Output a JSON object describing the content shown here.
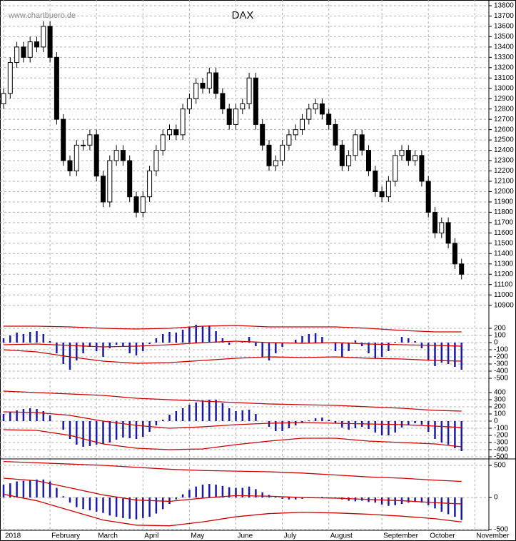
{
  "chart_data": [
    {
      "type": "candlestick",
      "title": "DAX",
      "watermark": "www.chartbuero.de",
      "categories": [
        "2018",
        null,
        null,
        null,
        null,
        null,
        null,
        "February",
        null,
        null,
        null,
        null,
        null,
        null,
        "March",
        null,
        null,
        null,
        null,
        null,
        null,
        "April",
        null,
        null,
        null,
        null,
        null,
        null,
        "May",
        null,
        null,
        null,
        null,
        null,
        null,
        "June",
        null,
        null,
        null,
        null,
        null,
        null,
        "July",
        null,
        null,
        null,
        null,
        null,
        null,
        "August",
        null,
        null,
        null,
        null,
        null,
        null,
        null,
        "September",
        null,
        null,
        null,
        null,
        null,
        null,
        "October",
        null,
        null,
        null,
        null,
        null,
        null,
        "November"
      ],
      "open": [
        12850,
        12950,
        13250,
        13400,
        13300,
        13450,
        13400,
        13600,
        13300,
        12700,
        12300,
        12200,
        12450,
        12450,
        12550,
        12150,
        11900,
        12300,
        12400,
        12300,
        11950,
        11800,
        11950,
        12200,
        12400,
        12550,
        12600,
        12550,
        12800,
        12900,
        13050,
        13000,
        13150,
        12950,
        12800,
        12650,
        12800,
        12850,
        13100,
        12650,
        12450,
        12250,
        12300,
        12450,
        12550,
        12600,
        12700,
        12800,
        12850,
        12750,
        12650,
        12450,
        12250,
        12350,
        12550,
        12400,
        12200,
        12000,
        11950,
        12100,
        12350,
        12400,
        12300,
        12350,
        12100,
        11800,
        11600,
        11700,
        11500,
        11300,
        null,
        null
      ],
      "high": [
        13000,
        13300,
        13450,
        13450,
        13500,
        13500,
        13650,
        13650,
        13350,
        12750,
        12350,
        12500,
        12500,
        12600,
        12600,
        12200,
        12350,
        12450,
        12450,
        12350,
        12000,
        12000,
        12250,
        12450,
        12600,
        12650,
        12650,
        12850,
        12950,
        13100,
        13100,
        13200,
        13200,
        13000,
        12850,
        12850,
        12900,
        13150,
        13150,
        12700,
        12500,
        12350,
        12500,
        12600,
        12650,
        12750,
        12850,
        12900,
        12900,
        12800,
        12700,
        12500,
        12400,
        12600,
        12600,
        12450,
        12250,
        12050,
        12150,
        12400,
        12450,
        12450,
        12400,
        12400,
        12150,
        11850,
        11750,
        11750,
        11550,
        11350,
        null,
        null
      ],
      "low": [
        12800,
        12900,
        13200,
        13250,
        13250,
        13350,
        13350,
        13250,
        12650,
        12250,
        12150,
        12150,
        12400,
        12400,
        12100,
        11850,
        11850,
        12250,
        12250,
        11900,
        11750,
        11750,
        11900,
        12150,
        12350,
        12500,
        12500,
        12500,
        12750,
        12850,
        12950,
        12950,
        12900,
        12750,
        12600,
        12600,
        12750,
        12800,
        12600,
        12400,
        12200,
        12200,
        12250,
        12400,
        12500,
        12550,
        12650,
        12750,
        12700,
        12600,
        12400,
        12200,
        12200,
        12300,
        12350,
        12150,
        11950,
        11900,
        11900,
        12050,
        12300,
        12250,
        12250,
        12050,
        11750,
        11550,
        11550,
        11450,
        11250,
        11150,
        null,
        null
      ],
      "close": [
        12950,
        13250,
        13400,
        13300,
        13450,
        13400,
        13600,
        13300,
        12700,
        12300,
        12200,
        12450,
        12450,
        12550,
        12150,
        11900,
        12300,
        12400,
        12300,
        11950,
        11800,
        11950,
        12200,
        12400,
        12550,
        12600,
        12550,
        12800,
        12900,
        13050,
        13000,
        13150,
        12950,
        12800,
        12650,
        12800,
        12850,
        13100,
        12650,
        12450,
        12250,
        12300,
        12450,
        12550,
        12600,
        12700,
        12800,
        12850,
        12750,
        12650,
        12450,
        12250,
        12350,
        12550,
        12400,
        12200,
        12000,
        11950,
        12100,
        12350,
        12400,
        12300,
        12350,
        12100,
        11800,
        11600,
        11700,
        11500,
        11300,
        11200,
        null,
        null
      ],
      "up_color": "#ffffff",
      "down_color": "#000000",
      "ylim": [
        10725,
        13855
      ],
      "yticks": [
        13800,
        13700,
        13600,
        13500,
        13400,
        13300,
        13200,
        13100,
        13000,
        12900,
        12800,
        12700,
        12600,
        12500,
        12400,
        12300,
        12200,
        12100,
        12000,
        11900,
        11800,
        11700,
        11600,
        11500,
        11400,
        11300,
        11200,
        11100,
        11000,
        10900
      ],
      "grid": true
    },
    {
      "type": "bar",
      "color": "#1a1aa8",
      "values": [
        60,
        100,
        140,
        120,
        150,
        160,
        120,
        20,
        -150,
        -300,
        -380,
        -250,
        -150,
        -60,
        -120,
        -200,
        -80,
        -30,
        -60,
        -150,
        -180,
        -120,
        -20,
        60,
        120,
        150,
        140,
        180,
        220,
        250,
        230,
        240,
        160,
        60,
        -30,
        0,
        20,
        80,
        -50,
        -200,
        -250,
        -150,
        -60,
        0,
        40,
        90,
        120,
        130,
        80,
        0,
        -120,
        -200,
        -120,
        30,
        -50,
        -150,
        -220,
        -200,
        -120,
        10,
        80,
        60,
        20,
        -80,
        -250,
        -330,
        -280,
        -300,
        -340,
        -380,
        null,
        null
      ],
      "series": [
        {
          "color": "#cc0000",
          "x": [
            0,
            5,
            10,
            15,
            20,
            25,
            30,
            35,
            40,
            45,
            50,
            55,
            60,
            65,
            69
          ],
          "values": [
            230,
            230,
            220,
            200,
            190,
            200,
            230,
            240,
            220,
            220,
            220,
            200,
            170,
            150,
            150
          ]
        },
        {
          "color": "#cc0000",
          "x": [
            0,
            5,
            10,
            15,
            20,
            25,
            30,
            35,
            40,
            45,
            50,
            55,
            60,
            65,
            69
          ],
          "values": [
            -30,
            -20,
            -40,
            -60,
            -50,
            -30,
            0,
            20,
            0,
            -10,
            0,
            -20,
            -30,
            -40,
            -50
          ]
        },
        {
          "color": "#cc0000",
          "x": [
            0,
            5,
            10,
            15,
            20,
            25,
            30,
            35,
            40,
            45,
            50,
            55,
            60,
            65,
            69
          ],
          "values": [
            -100,
            -130,
            -200,
            -260,
            -290,
            -280,
            -250,
            -220,
            -200,
            -210,
            -200,
            -220,
            -230,
            -250,
            -260
          ]
        }
      ],
      "ylim": [
        -630,
        270
      ],
      "yticks": [
        200,
        100,
        0,
        -100,
        -200,
        -300,
        -400,
        -500
      ],
      "grid": true
    },
    {
      "type": "bar",
      "color": "#1a1aa8",
      "values": [
        100,
        130,
        150,
        170,
        180,
        170,
        140,
        80,
        0,
        -120,
        -250,
        -330,
        -360,
        -350,
        -330,
        -320,
        -300,
        -260,
        -230,
        -240,
        -250,
        -220,
        -150,
        -60,
        20,
        90,
        140,
        180,
        230,
        260,
        290,
        300,
        300,
        250,
        180,
        140,
        150,
        160,
        100,
        0,
        -80,
        -140,
        -140,
        -100,
        -60,
        -20,
        10,
        40,
        50,
        20,
        -30,
        -90,
        -120,
        -100,
        -80,
        -110,
        -160,
        -200,
        -200,
        -160,
        -90,
        -50,
        -30,
        -50,
        -150,
        -250,
        -300,
        -330,
        -380,
        -420,
        null,
        null
      ],
      "series": [
        {
          "color": "#cc0000",
          "x": [
            0,
            5,
            10,
            15,
            20,
            25,
            30,
            35,
            40,
            45,
            50,
            55,
            60,
            65,
            69
          ],
          "values": [
            420,
            400,
            380,
            360,
            320,
            300,
            280,
            260,
            240,
            230,
            220,
            200,
            180,
            150,
            140
          ]
        },
        {
          "color": "#cc0000",
          "x": [
            0,
            5,
            10,
            15,
            20,
            25,
            30,
            35,
            40,
            45,
            50,
            55,
            60,
            65,
            69
          ],
          "values": [
            130,
            120,
            80,
            0,
            -60,
            -100,
            -80,
            -50,
            -30,
            -20,
            -30,
            -40,
            -50,
            -70,
            -90
          ]
        },
        {
          "color": "#cc0000",
          "x": [
            0,
            5,
            10,
            15,
            20,
            25,
            30,
            35,
            40,
            45,
            50,
            55,
            60,
            65,
            69
          ],
          "values": [
            -120,
            -130,
            -200,
            -320,
            -380,
            -400,
            -390,
            -330,
            -280,
            -240,
            -240,
            -280,
            -300,
            -320,
            -360
          ]
        }
      ],
      "ylim": [
        -530,
        470
      ],
      "yticks": [
        400,
        300,
        200,
        100,
        0,
        -100,
        -200,
        -300,
        -400,
        -500
      ],
      "grid": true
    },
    {
      "type": "bar",
      "color": "#1a1aa8",
      "values": [
        200,
        220,
        250,
        260,
        270,
        280,
        280,
        250,
        150,
        20,
        -80,
        -150,
        -180,
        -200,
        -220,
        -240,
        -280,
        -300,
        -320,
        -330,
        -340,
        -320,
        -300,
        -250,
        -180,
        -100,
        -30,
        50,
        120,
        170,
        200,
        210,
        200,
        180,
        160,
        150,
        150,
        170,
        130,
        80,
        40,
        10,
        -20,
        -30,
        -30,
        -20,
        -10,
        0,
        10,
        0,
        -10,
        -30,
        -50,
        -60,
        -50,
        -70,
        -80,
        -110,
        -130,
        -120,
        -100,
        -80,
        -70,
        -80,
        -120,
        -170,
        -220,
        -260,
        -300,
        -350,
        null,
        null
      ],
      "series": [
        {
          "color": "#cc0000",
          "x": [
            0,
            5,
            10,
            15,
            20,
            25,
            30,
            35,
            40,
            45,
            50,
            55,
            60,
            65,
            69
          ],
          "values": [
            560,
            540,
            520,
            500,
            470,
            440,
            420,
            410,
            400,
            380,
            350,
            320,
            300,
            270,
            250
          ]
        },
        {
          "color": "#cc0000",
          "x": [
            0,
            5,
            10,
            15,
            20,
            25,
            30,
            35,
            40,
            45,
            50,
            55,
            60,
            65,
            69
          ],
          "values": [
            300,
            260,
            150,
            40,
            -40,
            -60,
            -10,
            30,
            20,
            0,
            -10,
            -30,
            -50,
            -80,
            -100
          ]
        },
        {
          "color": "#cc0000",
          "x": [
            0,
            5,
            10,
            15,
            20,
            25,
            30,
            35,
            40,
            45,
            50,
            55,
            60,
            65,
            69
          ],
          "values": [
            50,
            -50,
            -200,
            -350,
            -430,
            -440,
            -380,
            -300,
            -250,
            -230,
            -240,
            -260,
            -290,
            -330,
            -380
          ]
        }
      ],
      "ylim": [
        -510,
        600
      ],
      "yticks": [
        500,
        0,
        -500
      ],
      "grid": true
    }
  ]
}
